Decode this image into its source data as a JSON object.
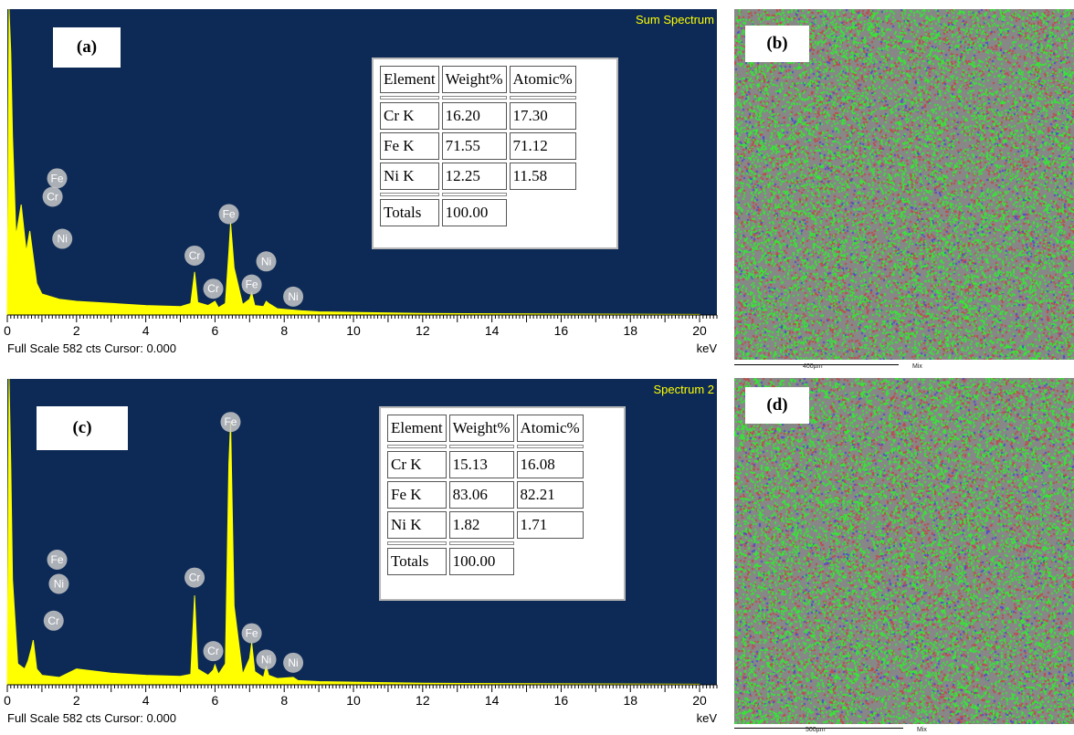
{
  "colors": {
    "background": "#0d2a56",
    "spectrum": "#ffff00",
    "peak_label": "#c8c8c8",
    "map_base": "#878787",
    "map_green": "#35e635",
    "map_red": "#c04848",
    "map_blue": "#4b4bd0"
  },
  "chart_data": [
    {
      "type": "area",
      "panel_label": "(a)",
      "title": "Sum Spectrum",
      "footer_left": "Full Scale 582 cts Cursor: 0.000",
      "xunit": "keV",
      "xlim": [
        0,
        20.5
      ],
      "ylim": [
        0,
        582
      ],
      "xticks": [
        0,
        2,
        4,
        6,
        8,
        10,
        12,
        14,
        16,
        18,
        20
      ],
      "spectrum": {
        "x": [
          0,
          0.05,
          0.1,
          0.15,
          0.25,
          0.4,
          0.55,
          0.65,
          0.75,
          0.85,
          1.0,
          1.5,
          2,
          3,
          4,
          5,
          5.3,
          5.41,
          5.5,
          5.8,
          5.95,
          6.0,
          6.1,
          6.3,
          6.4,
          6.45,
          6.55,
          6.8,
          7.0,
          7.06,
          7.15,
          7.4,
          7.48,
          7.55,
          7.8,
          8.5,
          9,
          10,
          12,
          15,
          20
        ],
        "y": [
          0,
          582,
          500,
          340,
          150,
          210,
          120,
          160,
          110,
          60,
          40,
          30,
          26,
          22,
          18,
          16,
          22,
          82,
          24,
          18,
          24,
          26,
          14,
          22,
          120,
          175,
          90,
          20,
          30,
          42,
          18,
          16,
          26,
          22,
          12,
          8,
          6,
          5,
          3,
          2,
          1
        ]
      },
      "peak_labels": [
        {
          "label": "Fe",
          "energy": 0.7,
          "level": 260
        },
        {
          "label": "Cr",
          "energy": 0.57,
          "level": 225
        },
        {
          "label": "Ni",
          "energy": 0.85,
          "level": 145
        },
        {
          "label": "Cr",
          "energy": 5.41,
          "level": 113
        },
        {
          "label": "Cr",
          "energy": 5.95,
          "level": 50
        },
        {
          "label": "Fe",
          "energy": 6.4,
          "level": 192
        },
        {
          "label": "Fe",
          "energy": 7.06,
          "level": 58
        },
        {
          "label": "Ni",
          "energy": 7.48,
          "level": 102
        },
        {
          "label": "Ni",
          "energy": 8.26,
          "level": 35
        }
      ],
      "table": {
        "headers": [
          "Element",
          "Weight%",
          "Atomic%"
        ],
        "rows": [
          [
            "Cr K",
            "16.20",
            "17.30"
          ],
          [
            "Fe K",
            "71.55",
            "71.12"
          ],
          [
            "Ni K",
            "12.25",
            "11.58"
          ]
        ],
        "totals_label": "Totals",
        "totals_value": "100.00"
      }
    },
    {
      "type": "area",
      "panel_label": "(c)",
      "title": "Spectrum 2",
      "footer_left": "Full Scale 582 cts Cursor: 0.000",
      "xunit": "keV",
      "xlim": [
        0,
        20.5
      ],
      "ylim": [
        0,
        582
      ],
      "xticks": [
        0,
        2,
        4,
        6,
        8,
        10,
        12,
        14,
        16,
        18,
        20
      ],
      "spectrum": {
        "x": [
          0,
          0.05,
          0.1,
          0.15,
          0.3,
          0.5,
          0.6,
          0.7,
          0.75,
          0.85,
          1.0,
          1.5,
          2,
          3,
          4,
          5,
          5.3,
          5.41,
          5.5,
          5.8,
          5.95,
          6.0,
          6.1,
          6.3,
          6.4,
          6.45,
          6.55,
          6.8,
          7.0,
          7.06,
          7.15,
          7.4,
          7.48,
          7.55,
          7.8,
          8.26,
          8.4,
          9,
          10,
          12,
          15,
          20
        ],
        "y": [
          0,
          582,
          420,
          200,
          40,
          30,
          45,
          70,
          85,
          30,
          18,
          14,
          30,
          22,
          18,
          16,
          20,
          170,
          30,
          18,
          28,
          38,
          20,
          40,
          420,
          500,
          150,
          20,
          50,
          80,
          25,
          14,
          36,
          18,
          12,
          14,
          8,
          6,
          5,
          3,
          2,
          1
        ]
      },
      "peak_labels": [
        {
          "label": "Fe",
          "energy": 0.7,
          "level": 238
        },
        {
          "label": "Ni",
          "energy": 0.75,
          "level": 192
        },
        {
          "label": "Cr",
          "energy": 0.6,
          "level": 122
        },
        {
          "label": "Cr",
          "energy": 5.41,
          "level": 204
        },
        {
          "label": "Fe",
          "energy": 6.45,
          "level": 500
        },
        {
          "label": "Cr",
          "energy": 5.95,
          "level": 64
        },
        {
          "label": "Fe",
          "energy": 7.06,
          "level": 98
        },
        {
          "label": "Ni",
          "energy": 7.48,
          "level": 48
        },
        {
          "label": "Ni",
          "energy": 8.26,
          "level": 42
        }
      ],
      "table": {
        "headers": [
          "Element",
          "Weight%",
          "Atomic%"
        ],
        "rows": [
          [
            "Cr K",
            "15.13",
            "16.08"
          ],
          [
            "Fe K",
            "83.06",
            "82.21"
          ],
          [
            "Ni K",
            "1.82",
            "1.71"
          ]
        ],
        "totals_label": "Totals",
        "totals_value": "100.00"
      }
    }
  ],
  "maps": [
    {
      "panel_label": "(b)",
      "scale_text": "400µm",
      "mix_text": "Mix"
    },
    {
      "panel_label": "(d)",
      "scale_text": "500µm",
      "mix_text": "Mix"
    }
  ]
}
